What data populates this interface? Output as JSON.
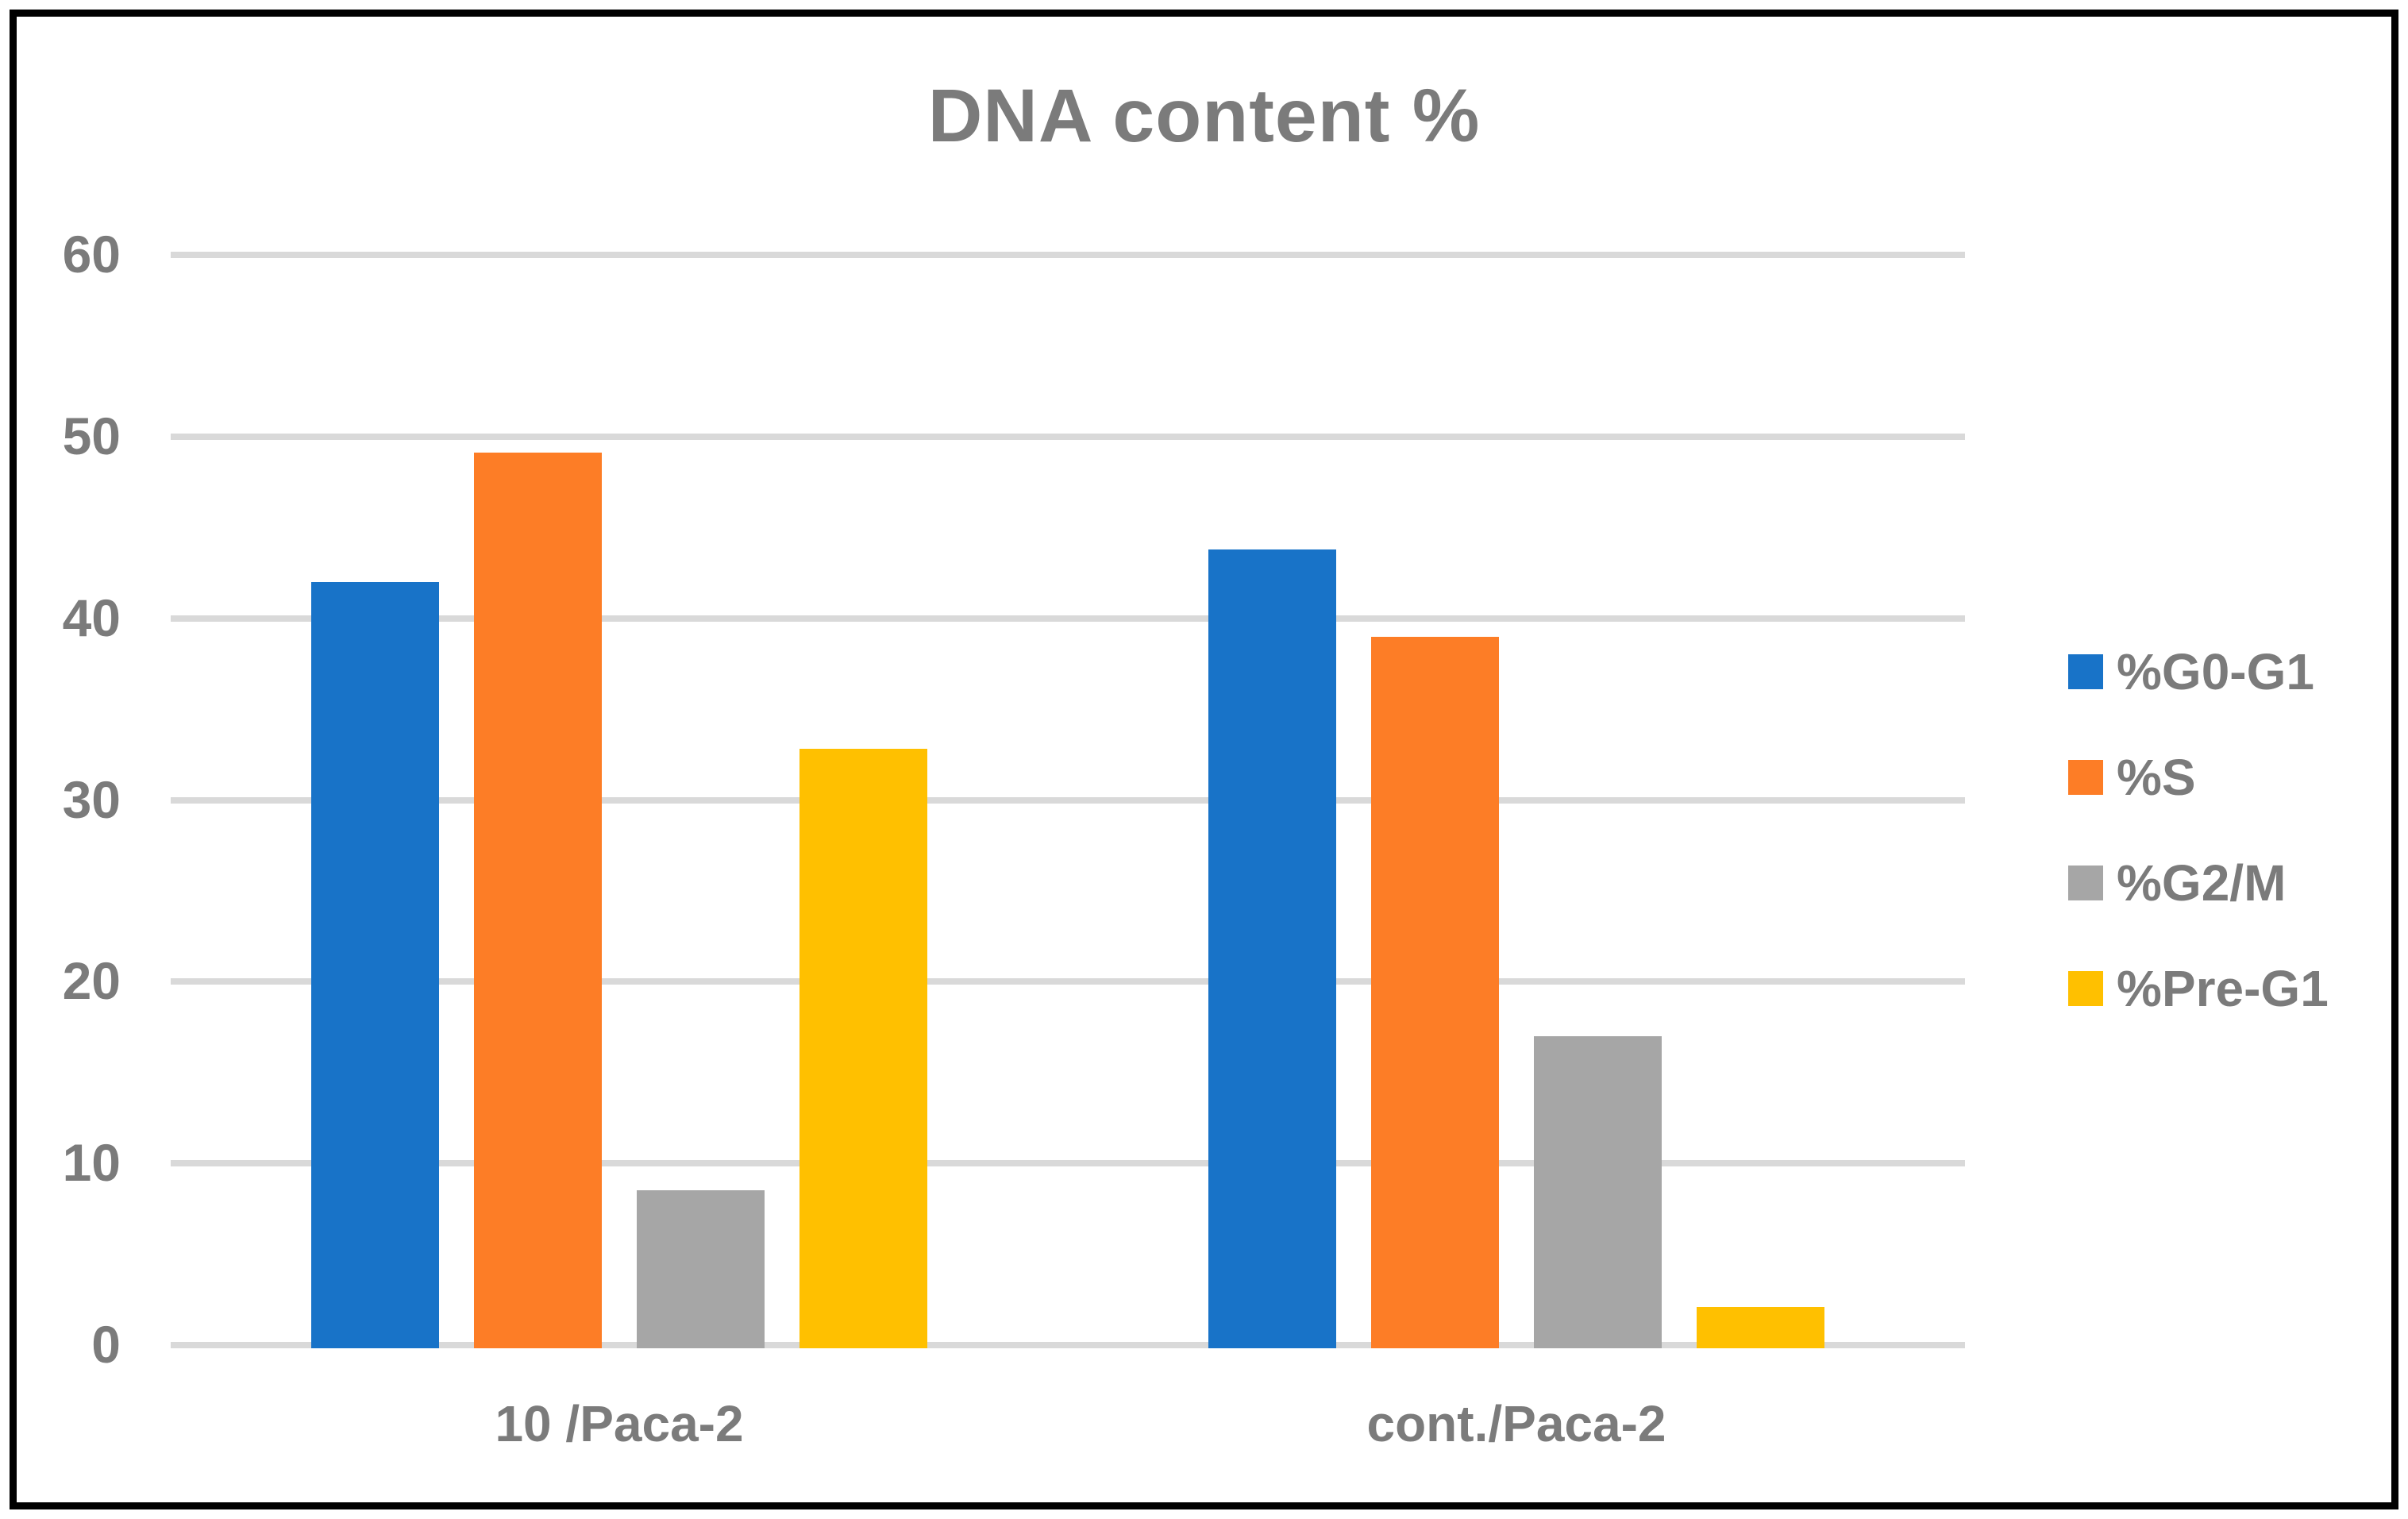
{
  "background": "#FFFFFF",
  "frame_color": "#000000",
  "text_color": "#7B7B7B",
  "gridline_color": "#D9D9D9",
  "chart_data": {
    "type": "bar",
    "title": "DNA content %",
    "categories": [
      "10 /Paca-2",
      "cont./Paca-2"
    ],
    "series": [
      {
        "name": "%G0-G1",
        "color": "#1873C8",
        "values": [
          42.0,
          43.8
        ]
      },
      {
        "name": "%S",
        "color": "#FD7D26",
        "values": [
          49.1,
          39.0
        ]
      },
      {
        "name": "%G2/M",
        "color": "#A6A6A6",
        "values": [
          8.5,
          17.0
        ]
      },
      {
        "name": "%Pre-G1",
        "color": "#FFC000",
        "values": [
          32.8,
          2.1
        ]
      }
    ],
    "xlabel": "",
    "ylabel": "",
    "ylim": [
      0,
      60
    ],
    "yticks": [
      0,
      10,
      20,
      30,
      40,
      50,
      60
    ],
    "grid": true,
    "legend_position": "right"
  }
}
